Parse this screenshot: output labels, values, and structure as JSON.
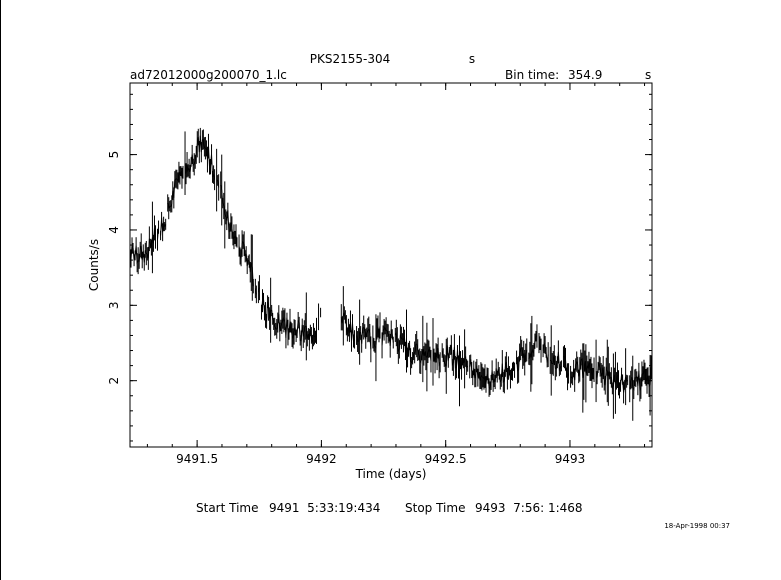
{
  "header": {
    "source_name": "PKS2155-304",
    "source_unit": "s",
    "file_name": "ad72012000g200070_1.lc",
    "bin_label": "Bin time:",
    "bin_value": "354.9",
    "bin_unit": "s"
  },
  "footer": {
    "start_label": "Start Time",
    "start_value": "9491  5:33:19:434",
    "stop_label": "Stop Time",
    "stop_value": "9493  7:56: 1:468",
    "plot_date": "18-Apr-1998 00:37"
  },
  "chart_data": {
    "type": "line",
    "title": "PKS2155-304",
    "xlabel": "Time (days)",
    "ylabel": "Counts/s",
    "xlim": [
      9491.23,
      9493.33
    ],
    "ylim": [
      1.12,
      5.95
    ],
    "xticks": [
      9491.5,
      9492,
      9492.5,
      9493
    ],
    "xtick_labels": [
      "9491.5",
      "9492",
      "9492.5",
      "9493"
    ],
    "yticks": [
      2,
      3,
      4,
      5
    ],
    "ytick_labels": [
      "2",
      "3",
      "4",
      "5"
    ],
    "grid": false,
    "legend": "none",
    "color": "#000000",
    "segments": [
      {
        "x": [
          9491.23,
          9491.26,
          9491.3,
          9491.33,
          9491.37,
          9491.4,
          9491.44,
          9491.47,
          9491.5,
          9491.53,
          9491.56,
          9491.6,
          9491.63,
          9491.66,
          9491.7,
          9491.73,
          9491.76,
          9491.8,
          9491.83,
          9491.86,
          9491.9,
          9491.93,
          9491.97,
          9492.0
        ],
        "y": [
          3.7,
          3.65,
          3.7,
          3.9,
          4.15,
          4.5,
          4.7,
          4.85,
          5.1,
          5.15,
          4.85,
          4.45,
          4.05,
          3.85,
          3.65,
          3.35,
          3.0,
          2.85,
          2.75,
          2.7,
          2.7,
          2.6,
          2.6,
          2.85
        ]
      },
      {
        "x": [
          9492.08,
          9492.12,
          9492.16,
          9492.2,
          9492.24,
          9492.28,
          9492.32,
          9492.36,
          9492.4,
          9492.44,
          9492.48,
          9492.52,
          9492.56,
          9492.6,
          9492.64,
          9492.68,
          9492.72,
          9492.76,
          9492.8,
          9492.84,
          9492.88,
          9492.92,
          9492.96,
          9493.0,
          9493.04,
          9493.08,
          9493.12,
          9493.16,
          9493.2,
          9493.24,
          9493.28,
          9493.33
        ],
        "y": [
          2.9,
          2.65,
          2.6,
          2.55,
          2.6,
          2.6,
          2.5,
          2.35,
          2.35,
          2.3,
          2.3,
          2.35,
          2.25,
          2.2,
          2.1,
          2.0,
          2.1,
          2.15,
          2.3,
          2.4,
          2.5,
          2.3,
          2.25,
          2.1,
          2.15,
          2.2,
          2.1,
          2.05,
          2.0,
          1.95,
          2.0,
          2.05
        ]
      }
    ]
  }
}
